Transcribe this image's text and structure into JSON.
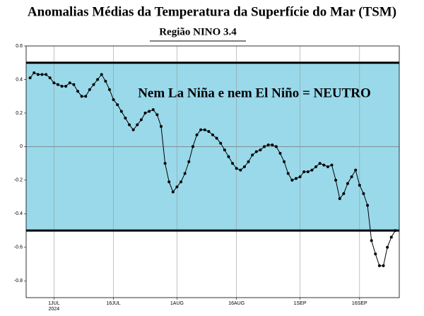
{
  "chart_data": {
    "type": "line",
    "title": "Anomalias Médias da Temperatura da Superfície do Mar (TSM)",
    "subtitle": "Região NINO 3.4",
    "annotation": "Nem La Niña e nem El Niño = NEUTRO",
    "x_year": "2024",
    "x": [
      "2024-06-25",
      "2024-06-26",
      "2024-06-27",
      "2024-06-28",
      "2024-06-29",
      "2024-06-30",
      "2024-07-01",
      "2024-07-02",
      "2024-07-03",
      "2024-07-04",
      "2024-07-05",
      "2024-07-06",
      "2024-07-07",
      "2024-07-08",
      "2024-07-09",
      "2024-07-10",
      "2024-07-11",
      "2024-07-12",
      "2024-07-13",
      "2024-07-14",
      "2024-07-15",
      "2024-07-16",
      "2024-07-17",
      "2024-07-18",
      "2024-07-19",
      "2024-07-20",
      "2024-07-21",
      "2024-07-22",
      "2024-07-23",
      "2024-07-24",
      "2024-07-25",
      "2024-07-26",
      "2024-07-27",
      "2024-07-28",
      "2024-07-29",
      "2024-07-30",
      "2024-07-31",
      "2024-08-01",
      "2024-08-02",
      "2024-08-03",
      "2024-08-04",
      "2024-08-05",
      "2024-08-06",
      "2024-08-07",
      "2024-08-08",
      "2024-08-09",
      "2024-08-10",
      "2024-08-11",
      "2024-08-12",
      "2024-08-13",
      "2024-08-14",
      "2024-08-15",
      "2024-08-16",
      "2024-08-17",
      "2024-08-18",
      "2024-08-19",
      "2024-08-20",
      "2024-08-21",
      "2024-08-22",
      "2024-08-23",
      "2024-08-24",
      "2024-08-25",
      "2024-08-26",
      "2024-08-27",
      "2024-08-28",
      "2024-08-29",
      "2024-08-30",
      "2024-08-31",
      "2024-09-01",
      "2024-09-02",
      "2024-09-03",
      "2024-09-04",
      "2024-09-05",
      "2024-09-06",
      "2024-09-07",
      "2024-09-08",
      "2024-09-09",
      "2024-09-10",
      "2024-09-11",
      "2024-09-12",
      "2024-09-13",
      "2024-09-14",
      "2024-09-15",
      "2024-09-16",
      "2024-09-17",
      "2024-09-18",
      "2024-09-19",
      "2024-09-20",
      "2024-09-21",
      "2024-09-22",
      "2024-09-23",
      "2024-09-24",
      "2024-09-25"
    ],
    "series": [
      {
        "color": "#000000",
        "values": [
          0.41,
          0.44,
          0.43,
          0.43,
          0.43,
          0.41,
          0.38,
          0.37,
          0.36,
          0.36,
          0.38,
          0.37,
          0.33,
          0.3,
          0.3,
          0.34,
          0.37,
          0.4,
          0.43,
          0.39,
          0.34,
          0.28,
          0.25,
          0.21,
          0.17,
          0.13,
          0.1,
          0.13,
          0.16,
          0.2,
          0.21,
          0.22,
          0.19,
          0.12,
          -0.1,
          -0.21,
          -0.27,
          -0.24,
          -0.21,
          -0.16,
          -0.09,
          0.0,
          0.07,
          0.1,
          0.1,
          0.09,
          0.07,
          0.05,
          0.02,
          -0.02,
          -0.06,
          -0.1,
          -0.13,
          -0.14,
          -0.12,
          -0.09,
          -0.05,
          -0.03,
          -0.02,
          0.0,
          0.01,
          0.01,
          0.0,
          -0.04,
          -0.09,
          -0.16,
          -0.2,
          -0.19,
          -0.18,
          -0.15,
          -0.15,
          -0.14,
          -0.12,
          -0.1,
          -0.11,
          -0.12,
          -0.11,
          -0.2,
          -0.31,
          -0.28,
          -0.22,
          -0.18,
          -0.14,
          -0.23,
          -0.28,
          -0.35,
          -0.56,
          -0.64,
          -0.71,
          -0.71,
          -0.6,
          -0.54,
          -0.5
        ]
      }
    ],
    "xlim": [
      "2024-06-24",
      "2024-09-26"
    ],
    "xticks": [
      {
        "value": "2024-07-01",
        "label": "1JUL"
      },
      {
        "value": "2024-07-16",
        "label": "16JUL"
      },
      {
        "value": "2024-08-01",
        "label": "1AUG"
      },
      {
        "value": "2024-08-16",
        "label": "16AUG"
      },
      {
        "value": "2024-09-01",
        "label": "1SEP"
      },
      {
        "value": "2024-09-16",
        "label": "16SEP"
      }
    ],
    "ylim": [
      -0.9,
      0.6
    ],
    "yticks": [
      0.6,
      0.4,
      0.2,
      0,
      -0.2,
      -0.4,
      -0.6,
      -0.8
    ],
    "band": {
      "from": -0.5,
      "to": 0.5,
      "color": "#99d9ea"
    },
    "grid": true
  }
}
